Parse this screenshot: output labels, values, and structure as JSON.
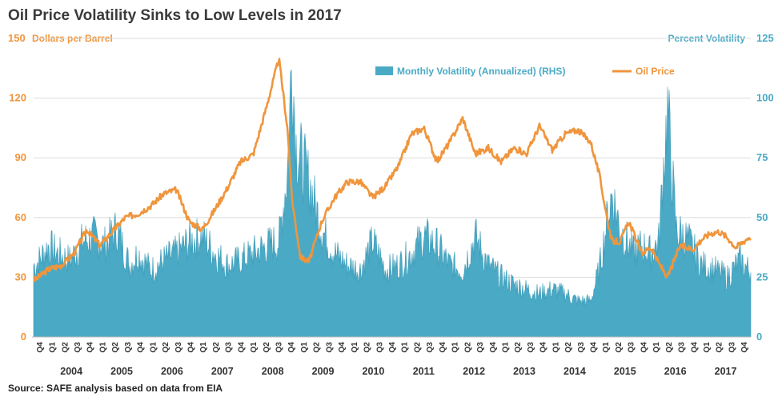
{
  "chart_data": {
    "type": "bar+line",
    "title": "Oil Price Volatility Sinks to Low Levels in 2017",
    "left_axis": {
      "title": "Dollars per Barrel",
      "ticks": [
        0,
        30,
        60,
        90,
        120,
        150
      ],
      "range": [
        0,
        150
      ],
      "color": "#f0953c"
    },
    "right_axis": {
      "title": "Percent Volatility",
      "ticks": [
        0,
        25,
        50,
        75,
        100,
        125
      ],
      "range": [
        0,
        125
      ],
      "color": "#4aaac6"
    },
    "x_range": [
      "2003-10-01",
      "2017-09-30"
    ],
    "quarter_labels": [
      "Q4",
      "Q1",
      "Q2",
      "Q3",
      "Q4",
      "Q1",
      "Q2",
      "Q3",
      "Q4",
      "Q1",
      "Q2",
      "Q3",
      "Q4",
      "Q1",
      "Q2",
      "Q3",
      "Q4",
      "Q1",
      "Q2",
      "Q3",
      "Q4",
      "Q1",
      "Q2",
      "Q3",
      "Q4",
      "Q1",
      "Q2",
      "Q3",
      "Q4",
      "Q1",
      "Q2",
      "Q3",
      "Q4",
      "Q1",
      "Q2",
      "Q3",
      "Q4",
      "Q1",
      "Q2",
      "Q3",
      "Q4",
      "Q1",
      "Q2",
      "Q3",
      "Q4",
      "Q1",
      "Q2",
      "Q3",
      "Q4",
      "Q1",
      "Q2",
      "Q3",
      "Q4",
      "Q1",
      "Q2",
      "Q3",
      "Q4"
    ],
    "year_labels": [
      "2004",
      "2005",
      "2006",
      "2007",
      "2008",
      "2009",
      "2010",
      "2011",
      "2012",
      "2013",
      "2014",
      "2015",
      "2016",
      "2017"
    ],
    "grid": true,
    "legend_position": "top-center",
    "series": [
      {
        "name": "Monthly Volatility (Annualized) (RHS)",
        "type": "area",
        "axis": "right",
        "color": "#4aaac6",
        "x": [
          "2003-10",
          "2004-01",
          "2004-03",
          "2004-06",
          "2004-09",
          "2004-12",
          "2005-02",
          "2005-05",
          "2005-08",
          "2005-10",
          "2006-01",
          "2006-04",
          "2006-07",
          "2006-10",
          "2007-01",
          "2007-04",
          "2007-07",
          "2007-10",
          "2008-01",
          "2008-04",
          "2008-07",
          "2008-09",
          "2008-10",
          "2008-11",
          "2008-12",
          "2009-02",
          "2009-05",
          "2009-08",
          "2009-11",
          "2010-02",
          "2010-05",
          "2010-08",
          "2010-11",
          "2011-02",
          "2011-05",
          "2011-08",
          "2011-11",
          "2012-02",
          "2012-05",
          "2012-08",
          "2012-11",
          "2013-02",
          "2013-05",
          "2013-08",
          "2013-11",
          "2014-02",
          "2014-05",
          "2014-08",
          "2014-10",
          "2014-12",
          "2015-01",
          "2015-03",
          "2015-06",
          "2015-08",
          "2015-10",
          "2015-12",
          "2016-01",
          "2016-02",
          "2016-04",
          "2016-07",
          "2016-10",
          "2017-01",
          "2017-04",
          "2017-07",
          "2017-09"
        ],
        "y": [
          30,
          38,
          35,
          32,
          40,
          42,
          38,
          45,
          30,
          35,
          28,
          32,
          35,
          40,
          42,
          35,
          30,
          32,
          35,
          38,
          40,
          70,
          118,
          80,
          75,
          65,
          45,
          35,
          30,
          28,
          40,
          28,
          30,
          35,
          42,
          38,
          30,
          28,
          42,
          30,
          25,
          22,
          20,
          18,
          20,
          18,
          15,
          15,
          28,
          50,
          60,
          45,
          35,
          38,
          35,
          40,
          70,
          95,
          45,
          40,
          30,
          28,
          25,
          32,
          28
        ]
      },
      {
        "name": "Oil Price",
        "type": "line",
        "axis": "left",
        "color": "#f0953c",
        "x": [
          "2003-10",
          "2004-01",
          "2004-04",
          "2004-07",
          "2004-10",
          "2005-01",
          "2005-04",
          "2005-07",
          "2005-10",
          "2006-01",
          "2006-04",
          "2006-07",
          "2006-10",
          "2007-01",
          "2007-04",
          "2007-07",
          "2007-10",
          "2008-01",
          "2008-04",
          "2008-07",
          "2008-09",
          "2008-10",
          "2008-12",
          "2009-02",
          "2009-05",
          "2009-08",
          "2009-11",
          "2010-02",
          "2010-05",
          "2010-08",
          "2010-11",
          "2011-02",
          "2011-05",
          "2011-08",
          "2011-11",
          "2012-02",
          "2012-05",
          "2012-08",
          "2012-11",
          "2013-02",
          "2013-05",
          "2013-08",
          "2013-11",
          "2014-02",
          "2014-05",
          "2014-08",
          "2014-10",
          "2014-12",
          "2015-01",
          "2015-03",
          "2015-05",
          "2015-08",
          "2015-10",
          "2015-12",
          "2016-02",
          "2016-05",
          "2016-08",
          "2016-10",
          "2016-12",
          "2017-02",
          "2017-04",
          "2017-06",
          "2017-09"
        ],
        "y": [
          29,
          34,
          36,
          42,
          54,
          46,
          53,
          60,
          62,
          66,
          72,
          74,
          58,
          54,
          64,
          75,
          88,
          92,
          115,
          140,
          104,
          70,
          40,
          38,
          58,
          70,
          78,
          78,
          70,
          76,
          86,
          102,
          105,
          88,
          98,
          110,
          92,
          95,
          88,
          95,
          92,
          106,
          94,
          102,
          104,
          98,
          82,
          58,
          48,
          48,
          58,
          42,
          45,
          37,
          30,
          46,
          44,
          49,
          52,
          53,
          50,
          45,
          50
        ]
      }
    ],
    "source": "Source: SAFE analysis based on data from EIA"
  }
}
